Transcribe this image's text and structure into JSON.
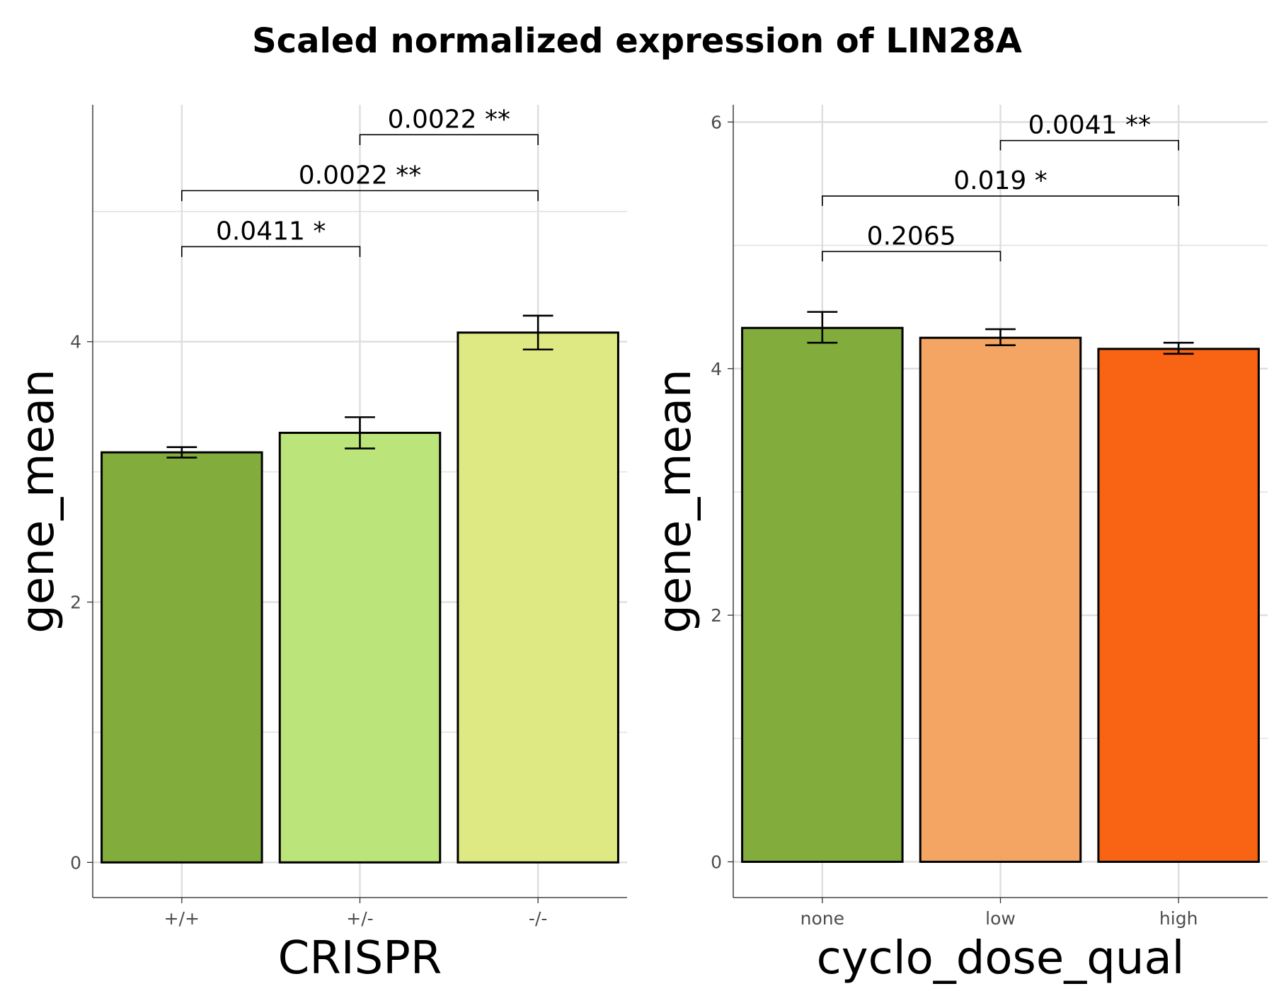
{
  "title": "Scaled normalized expression of LIN28A",
  "chart_data": [
    {
      "type": "bar",
      "xlabel": "CRISPR",
      "ylabel": "gene_mean",
      "categories": [
        "+/+",
        "+/-",
        "-/-"
      ],
      "values": [
        3.15,
        3.3,
        4.07
      ],
      "errors": [
        [
          3.11,
          3.19
        ],
        [
          3.18,
          3.42
        ],
        [
          3.94,
          4.2
        ]
      ],
      "colors": [
        "#82ad3c",
        "#bbe47a",
        "#dfe983"
      ],
      "ylim": [
        -0.27,
        5.82
      ],
      "yticks": [
        0,
        2,
        4
      ],
      "comparisons": [
        {
          "from": 0,
          "to": 1,
          "label": "0.0411 *",
          "y": 4.73,
          "y_end": 4.65
        },
        {
          "from": 0,
          "to": 2,
          "label": "0.0022 **",
          "y": 5.16,
          "y_end": 5.08
        },
        {
          "from": 1,
          "to": 2,
          "label": "0.0022 **",
          "y": 5.59,
          "y_end": 5.51
        }
      ],
      "grid": true
    },
    {
      "type": "bar",
      "xlabel": "cyclo_dose_qual",
      "ylabel": "gene_mean",
      "categories": [
        "none",
        "low",
        "high"
      ],
      "values": [
        4.33,
        4.25,
        4.16
      ],
      "errors": [
        [
          4.21,
          4.46
        ],
        [
          4.19,
          4.32
        ],
        [
          4.12,
          4.21
        ]
      ],
      "colors": [
        "#82ad3c",
        "#f5a563",
        "#f86314"
      ],
      "ylim": [
        -0.29,
        6.14
      ],
      "yticks": [
        0,
        2,
        4,
        6
      ],
      "comparisons": [
        {
          "from": 0,
          "to": 1,
          "label": "0.2065",
          "y": 4.95,
          "y_end": 4.87
        },
        {
          "from": 0,
          "to": 2,
          "label": "0.019 *",
          "y": 5.4,
          "y_end": 5.32
        },
        {
          "from": 1,
          "to": 2,
          "label": "0.0041 **",
          "y": 5.85,
          "y_end": 5.77
        }
      ],
      "grid": true
    }
  ]
}
